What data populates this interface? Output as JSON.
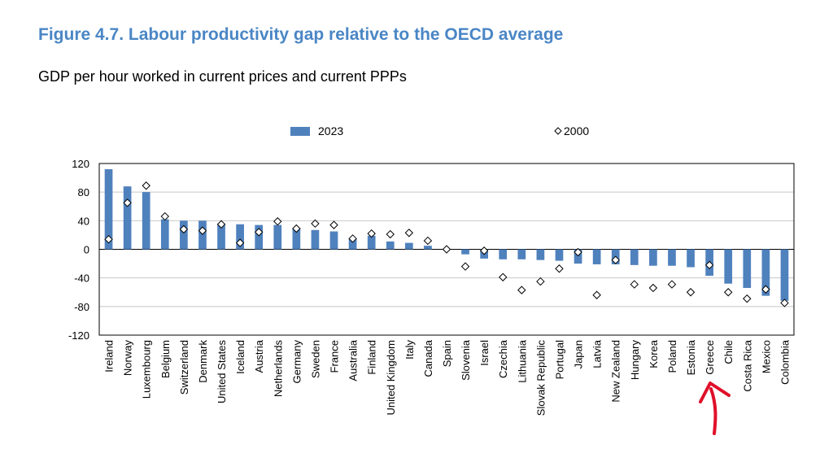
{
  "figure": {
    "title": "Figure 4.7. Labour productivity gap relative to the OECD average",
    "subtitle": "GDP per hour worked in current prices and current PPPs"
  },
  "colors": {
    "bar": "#4f81bd",
    "title": "#4a86c5",
    "grid": "#c8c8c8",
    "annotation": "#e0102a"
  },
  "annotation": {
    "shape": "red-arrow",
    "points_to": "Greece"
  },
  "chart_data": {
    "type": "bar",
    "ylim": [
      -120,
      120
    ],
    "yticks": [
      120,
      80,
      40,
      0,
      -40,
      -80,
      -120
    ],
    "grid": true,
    "legend_position": "top",
    "categories": [
      "Ireland",
      "Norway",
      "Luxembourg",
      "Belgium",
      "Switzerland",
      "Denmark",
      "United States",
      "Iceland",
      "Austria",
      "Netherlands",
      "Germany",
      "Sweden",
      "France",
      "Australia",
      "Finland",
      "United Kingdom",
      "Italy",
      "Canada",
      "Spain",
      "Slovenia",
      "Israel",
      "Czechia",
      "Lithuania",
      "Slovak Republic",
      "Portugal",
      "Japan",
      "Latvia",
      "New Zealand",
      "Hungary",
      "Korea",
      "Poland",
      "Estonia",
      "Greece",
      "Chile",
      "Costa Rica",
      "Mexico",
      "Colombia"
    ],
    "series": [
      {
        "name": "2023",
        "kind": "bar",
        "values": [
          112,
          88,
          80,
          42,
          40,
          40,
          36,
          35,
          34,
          34,
          30,
          27,
          25,
          15,
          19,
          11,
          9,
          5,
          0,
          -7,
          -13,
          -14,
          -14,
          -15,
          -16,
          -20,
          -21,
          -21,
          -22,
          -23,
          -23,
          -25,
          -37,
          -48,
          -54,
          -65,
          -72
        ]
      },
      {
        "name": "2000",
        "kind": "marker",
        "values": [
          14,
          65,
          89,
          46,
          28,
          26,
          35,
          9,
          24,
          39,
          29,
          36,
          34,
          15,
          22,
          21,
          23,
          12,
          0,
          -24,
          -2,
          -39,
          -57,
          -45,
          -27,
          -4,
          -64,
          -15,
          -49,
          -54,
          -49,
          -60,
          -22,
          -60,
          -69,
          -56,
          -75
        ]
      }
    ]
  }
}
